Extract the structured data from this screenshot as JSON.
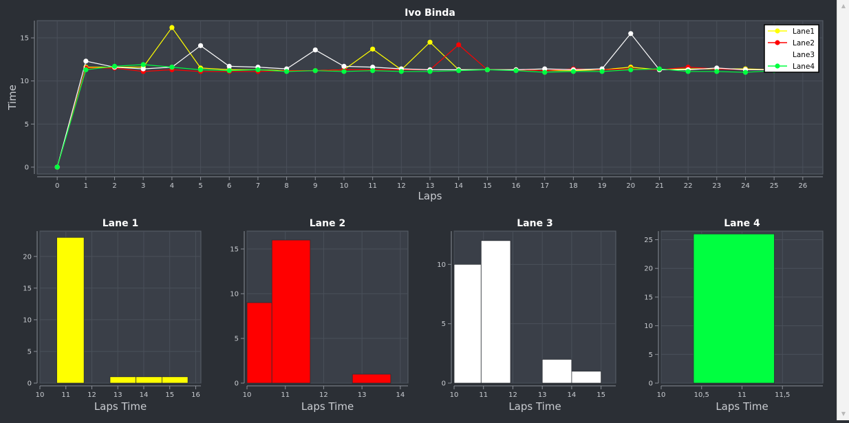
{
  "colors": {
    "background": "#2b2f35",
    "plot_background": "#3a3f48",
    "axis_text": "#c9ccd1",
    "lane1": "#ffff00",
    "lane2": "#ff0000",
    "lane3": "#ffffff",
    "lane4": "#00ff40"
  },
  "chart_data": [
    {
      "type": "line",
      "title": "Ivo Binda",
      "xlabel": "Laps",
      "ylabel": "Time",
      "xlim": [
        -0.7,
        26.7
      ],
      "ylim": [
        -0.8,
        17.0
      ],
      "xticks": [
        0,
        1,
        2,
        3,
        4,
        5,
        6,
        7,
        8,
        9,
        10,
        11,
        12,
        13,
        14,
        15,
        16,
        17,
        18,
        19,
        20,
        21,
        22,
        23,
        24,
        25,
        26
      ],
      "xtick_labels": [
        "0",
        "1",
        "2",
        "3",
        "4",
        "5",
        "6",
        "7",
        "8",
        "9",
        "10",
        "11",
        "12",
        "13",
        "14",
        "15",
        "16",
        "17",
        "18",
        "19",
        "20",
        "21",
        "22",
        "23",
        "24",
        "25",
        "26"
      ],
      "yticks": [
        0,
        5,
        10,
        15
      ],
      "ytick_labels": [
        "0",
        "5",
        "10",
        "15"
      ],
      "grid": true,
      "legend_position": "top-right",
      "x": [
        0,
        1,
        2,
        3,
        4,
        5,
        6,
        7,
        8,
        9,
        10,
        11,
        12,
        13,
        14,
        15,
        16,
        17,
        18,
        19,
        20,
        21,
        22,
        23,
        24,
        25
      ],
      "series": [
        {
          "name": "Lane1",
          "color_key": "lane1",
          "markers": true,
          "values": [
            0,
            11.6,
            11.6,
            11.6,
            16.2,
            11.5,
            11.3,
            11.3,
            11.2,
            11.2,
            11.3,
            13.7,
            11.3,
            14.5,
            11.3,
            11.3,
            11.3,
            11.2,
            11.2,
            11.3,
            11.6,
            11.3,
            11.4,
            11.4,
            11.4,
            11.3
          ]
        },
        {
          "name": "Lane2",
          "color_key": "lane2",
          "markers": true,
          "values": [
            0,
            11.5,
            11.5,
            11.1,
            11.3,
            11.1,
            11.1,
            11.1,
            11.2,
            11.2,
            11.3,
            11.3,
            11.3,
            11.3,
            14.2,
            11.3,
            11.3,
            11.2,
            11.4,
            11.3,
            11.4,
            11.3,
            11.6,
            11.4,
            11.3,
            11.3
          ]
        },
        {
          "name": "Lane3",
          "color_key": "lane3",
          "markers": true,
          "values": [
            0,
            12.3,
            11.6,
            11.4,
            11.6,
            14.1,
            11.7,
            11.6,
            11.4,
            13.6,
            11.7,
            11.6,
            11.4,
            11.3,
            11.3,
            11.3,
            11.3,
            11.4,
            11.3,
            11.4,
            15.5,
            11.3,
            11.3,
            11.5,
            11.3,
            11.3
          ]
        },
        {
          "name": "Lane4",
          "color_key": "lane4",
          "markers": true,
          "values": [
            0,
            11.3,
            11.7,
            11.9,
            11.6,
            11.3,
            11.2,
            11.3,
            11.1,
            11.2,
            11.1,
            11.2,
            11.1,
            11.1,
            11.2,
            11.3,
            11.2,
            11.0,
            11.1,
            11.1,
            11.3,
            11.4,
            11.1,
            11.1,
            11.0,
            11.2
          ]
        }
      ]
    },
    {
      "type": "bar",
      "title": "Lane 1",
      "xlabel": "Laps Time",
      "ylabel": "",
      "color_key": "lane1",
      "xlim": [
        10,
        16.2
      ],
      "ylim": [
        0,
        24.0
      ],
      "xticks": [
        10,
        11,
        12,
        13,
        14,
        15,
        16
      ],
      "xtick_labels": [
        "10",
        "11",
        "12",
        "13",
        "14",
        "15",
        "16"
      ],
      "yticks": [
        0,
        5,
        10,
        15,
        20
      ],
      "ytick_labels": [
        "0",
        "5",
        "10",
        "15",
        "20"
      ],
      "bins": [
        {
          "start": 10.65,
          "end": 11.7,
          "value": 23
        },
        {
          "start": 12.7,
          "end": 13.7,
          "value": 1
        },
        {
          "start": 13.7,
          "end": 14.7,
          "value": 1
        },
        {
          "start": 14.7,
          "end": 15.7,
          "value": 1
        }
      ]
    },
    {
      "type": "bar",
      "title": "Lane 2",
      "xlabel": "Laps Time",
      "ylabel": "",
      "color_key": "lane2",
      "xlim": [
        10,
        14.2
      ],
      "ylim": [
        0,
        17.0
      ],
      "xticks": [
        10,
        11,
        12,
        13,
        14
      ],
      "xtick_labels": [
        "10",
        "11",
        "12",
        "13",
        "14"
      ],
      "yticks": [
        0,
        5,
        10,
        15
      ],
      "ytick_labels": [
        "0",
        "5",
        "10",
        "15"
      ],
      "bins": [
        {
          "start": 10.0,
          "end": 10.65,
          "value": 9
        },
        {
          "start": 10.65,
          "end": 11.65,
          "value": 16
        },
        {
          "start": 12.75,
          "end": 13.75,
          "value": 1
        }
      ]
    },
    {
      "type": "bar",
      "title": "Lane 3",
      "xlabel": "Laps Time",
      "ylabel": "",
      "color_key": "lane3",
      "xlim": [
        10,
        15.5
      ],
      "ylim": [
        0,
        12.8
      ],
      "xticks": [
        10,
        11,
        12,
        13,
        14,
        15
      ],
      "xtick_labels": [
        "10",
        "11",
        "12",
        "13",
        "14",
        "15"
      ],
      "yticks": [
        0,
        5,
        10
      ],
      "ytick_labels": [
        "0",
        "5",
        "10"
      ],
      "bins": [
        {
          "start": 10.0,
          "end": 10.92,
          "value": 10
        },
        {
          "start": 10.92,
          "end": 11.92,
          "value": 12
        },
        {
          "start": 13.0,
          "end": 14.0,
          "value": 2
        },
        {
          "start": 14.0,
          "end": 15.0,
          "value": 1
        }
      ]
    },
    {
      "type": "bar",
      "title": "Lane 4",
      "xlabel": "Laps Time",
      "ylabel": "",
      "color_key": "lane4",
      "xlim": [
        10,
        12
      ],
      "ylim": [
        0,
        26.5
      ],
      "xticks": [
        10,
        10.5,
        11,
        11.5
      ],
      "xtick_labels": [
        "10",
        "10,5",
        "11",
        "11,5"
      ],
      "yticks": [
        0,
        5,
        10,
        15,
        20,
        25
      ],
      "ytick_labels": [
        "0",
        "5",
        "10",
        "15",
        "20",
        "25"
      ],
      "bins": [
        {
          "start": 10.4,
          "end": 11.4,
          "value": 26
        }
      ]
    }
  ]
}
